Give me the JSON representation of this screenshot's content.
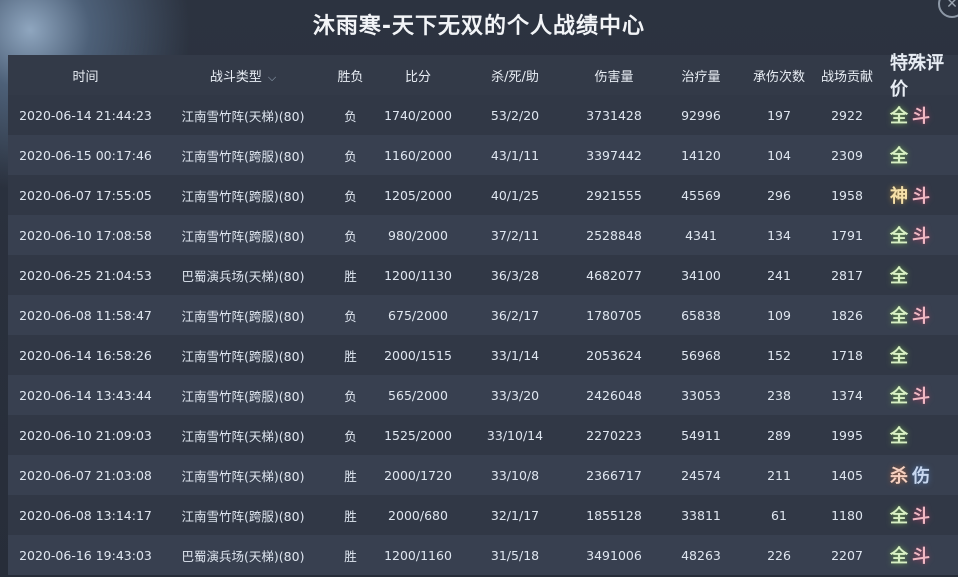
{
  "title": "沐雨寒-天下无双的个人战绩中心",
  "close_icon": "close-icon",
  "headers": [
    "时间",
    "战斗类型",
    "胜负",
    "比分",
    "杀/死/助",
    "伤害量",
    "治疗量",
    "承伤次数",
    "战场贡献",
    "特殊评价"
  ],
  "rows": [
    [
      "2020-06-14 21:44:23",
      "江南雪竹阵(天梯)(80)",
      "负",
      "1740/2000",
      "53/2/20",
      "3731428",
      "92996",
      "197",
      "2922",
      "全",
      "斗"
    ],
    [
      "2020-06-15 00:17:46",
      "江南雪竹阵(跨服)(80)",
      "负",
      "1160/2000",
      "43/1/11",
      "3397442",
      "14120",
      "104",
      "2309",
      "全",
      ""
    ],
    [
      "2020-06-07 17:55:05",
      "江南雪竹阵(跨服)(80)",
      "负",
      "1205/2000",
      "40/1/25",
      "2921555",
      "45569",
      "296",
      "1958",
      "神",
      "斗"
    ],
    [
      "2020-06-10 17:08:58",
      "江南雪竹阵(跨服)(80)",
      "负",
      "980/2000",
      "37/2/11",
      "2528848",
      "4341",
      "134",
      "1791",
      "全",
      "斗"
    ],
    [
      "2020-06-25 21:04:53",
      "巴蜀演兵场(天梯)(80)",
      "胜",
      "1200/1130",
      "36/3/28",
      "4682077",
      "34100",
      "241",
      "2817",
      "全",
      ""
    ],
    [
      "2020-06-08 11:58:47",
      "江南雪竹阵(跨服)(80)",
      "负",
      "675/2000",
      "36/2/17",
      "1780705",
      "65838",
      "109",
      "1826",
      "全",
      "斗"
    ],
    [
      "2020-06-14 16:58:26",
      "江南雪竹阵(跨服)(80)",
      "胜",
      "2000/1515",
      "33/1/14",
      "2053624",
      "56968",
      "152",
      "1718",
      "全",
      ""
    ],
    [
      "2020-06-14 13:43:44",
      "江南雪竹阵(跨服)(80)",
      "负",
      "565/2000",
      "33/3/20",
      "2426048",
      "33053",
      "238",
      "1374",
      "全",
      "斗"
    ],
    [
      "2020-06-10 21:09:03",
      "江南雪竹阵(天梯)(80)",
      "负",
      "1525/2000",
      "33/10/14",
      "2270223",
      "54911",
      "289",
      "1995",
      "全",
      ""
    ],
    [
      "2020-06-07 21:03:08",
      "江南雪竹阵(天梯)(80)",
      "胜",
      "2000/1720",
      "33/10/8",
      "2366717",
      "24574",
      "211",
      "1405",
      "杀",
      "伤"
    ],
    [
      "2020-06-08 13:14:17",
      "江南雪竹阵(跨服)(80)",
      "胜",
      "2000/680",
      "32/1/17",
      "1855128",
      "33811",
      "61",
      "1180",
      "全",
      "斗"
    ],
    [
      "2020-06-16 19:43:03",
      "巴蜀演兵场(天梯)(80)",
      "胜",
      "1200/1160",
      "31/5/18",
      "3491006",
      "48263",
      "226",
      "2207",
      "全",
      "斗"
    ]
  ]
}
